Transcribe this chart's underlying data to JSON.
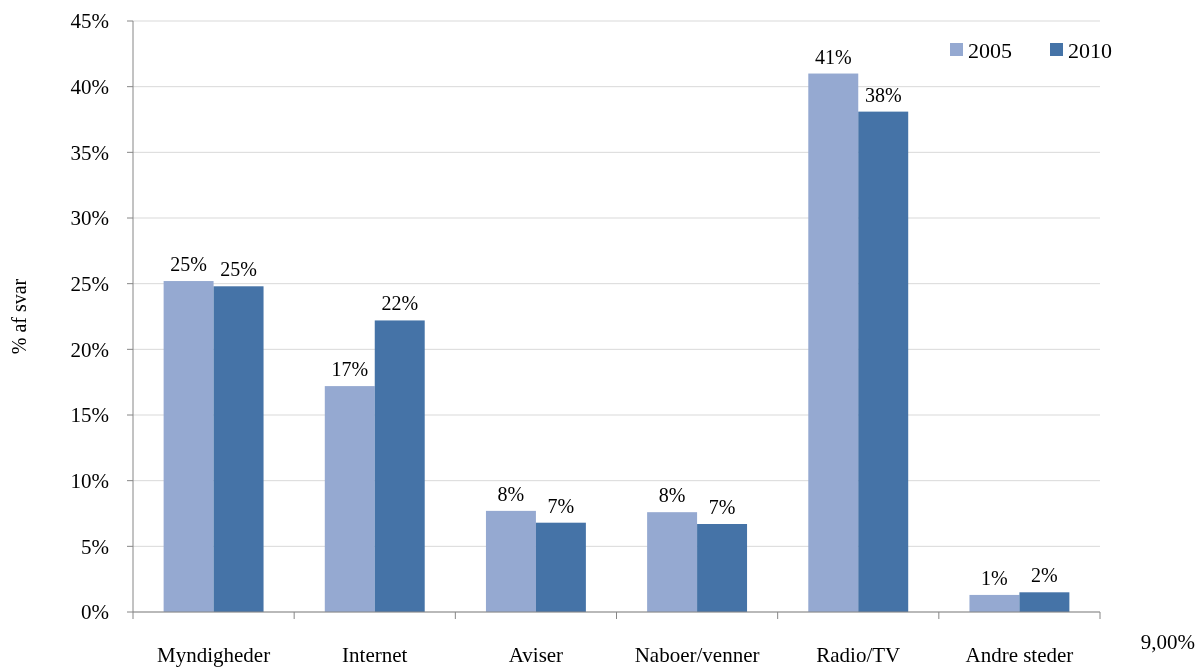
{
  "chart_data": {
    "type": "bar",
    "ylabel": "% af svar",
    "categories": [
      "Myndigheder",
      "Internet",
      "Aviser",
      "Naboer/venner",
      "Radio/TV",
      "Andre steder"
    ],
    "series": [
      {
        "name": "2005",
        "color": "#95a9d1",
        "values": [
          25.2,
          17.2,
          7.7,
          7.6,
          41.0,
          1.3
        ],
        "value_labels": [
          "25%",
          "17%",
          "8%",
          "8%",
          "41%",
          "1%"
        ]
      },
      {
        "name": "2010",
        "color": "#4573a7",
        "values": [
          24.8,
          22.2,
          6.8,
          6.7,
          38.1,
          1.5
        ],
        "value_labels": [
          "25%",
          "22%",
          "7%",
          "7%",
          "38%",
          "2%"
        ]
      }
    ],
    "ylim": [
      0,
      45
    ],
    "yticks": [
      {
        "value": 0,
        "label": "0%"
      },
      {
        "value": 5,
        "label": "5%"
      },
      {
        "value": 10,
        "label": "10%"
      },
      {
        "value": 15,
        "label": "15%"
      },
      {
        "value": 20,
        "label": "20%"
      },
      {
        "value": 25,
        "label": "25%"
      },
      {
        "value": 30,
        "label": "30%"
      },
      {
        "value": 35,
        "label": "35%"
      },
      {
        "value": 40,
        "label": "40%"
      },
      {
        "value": 45,
        "label": "45%"
      }
    ],
    "grid": "y",
    "legend": "top right",
    "annotations": [
      "9,00%"
    ]
  }
}
